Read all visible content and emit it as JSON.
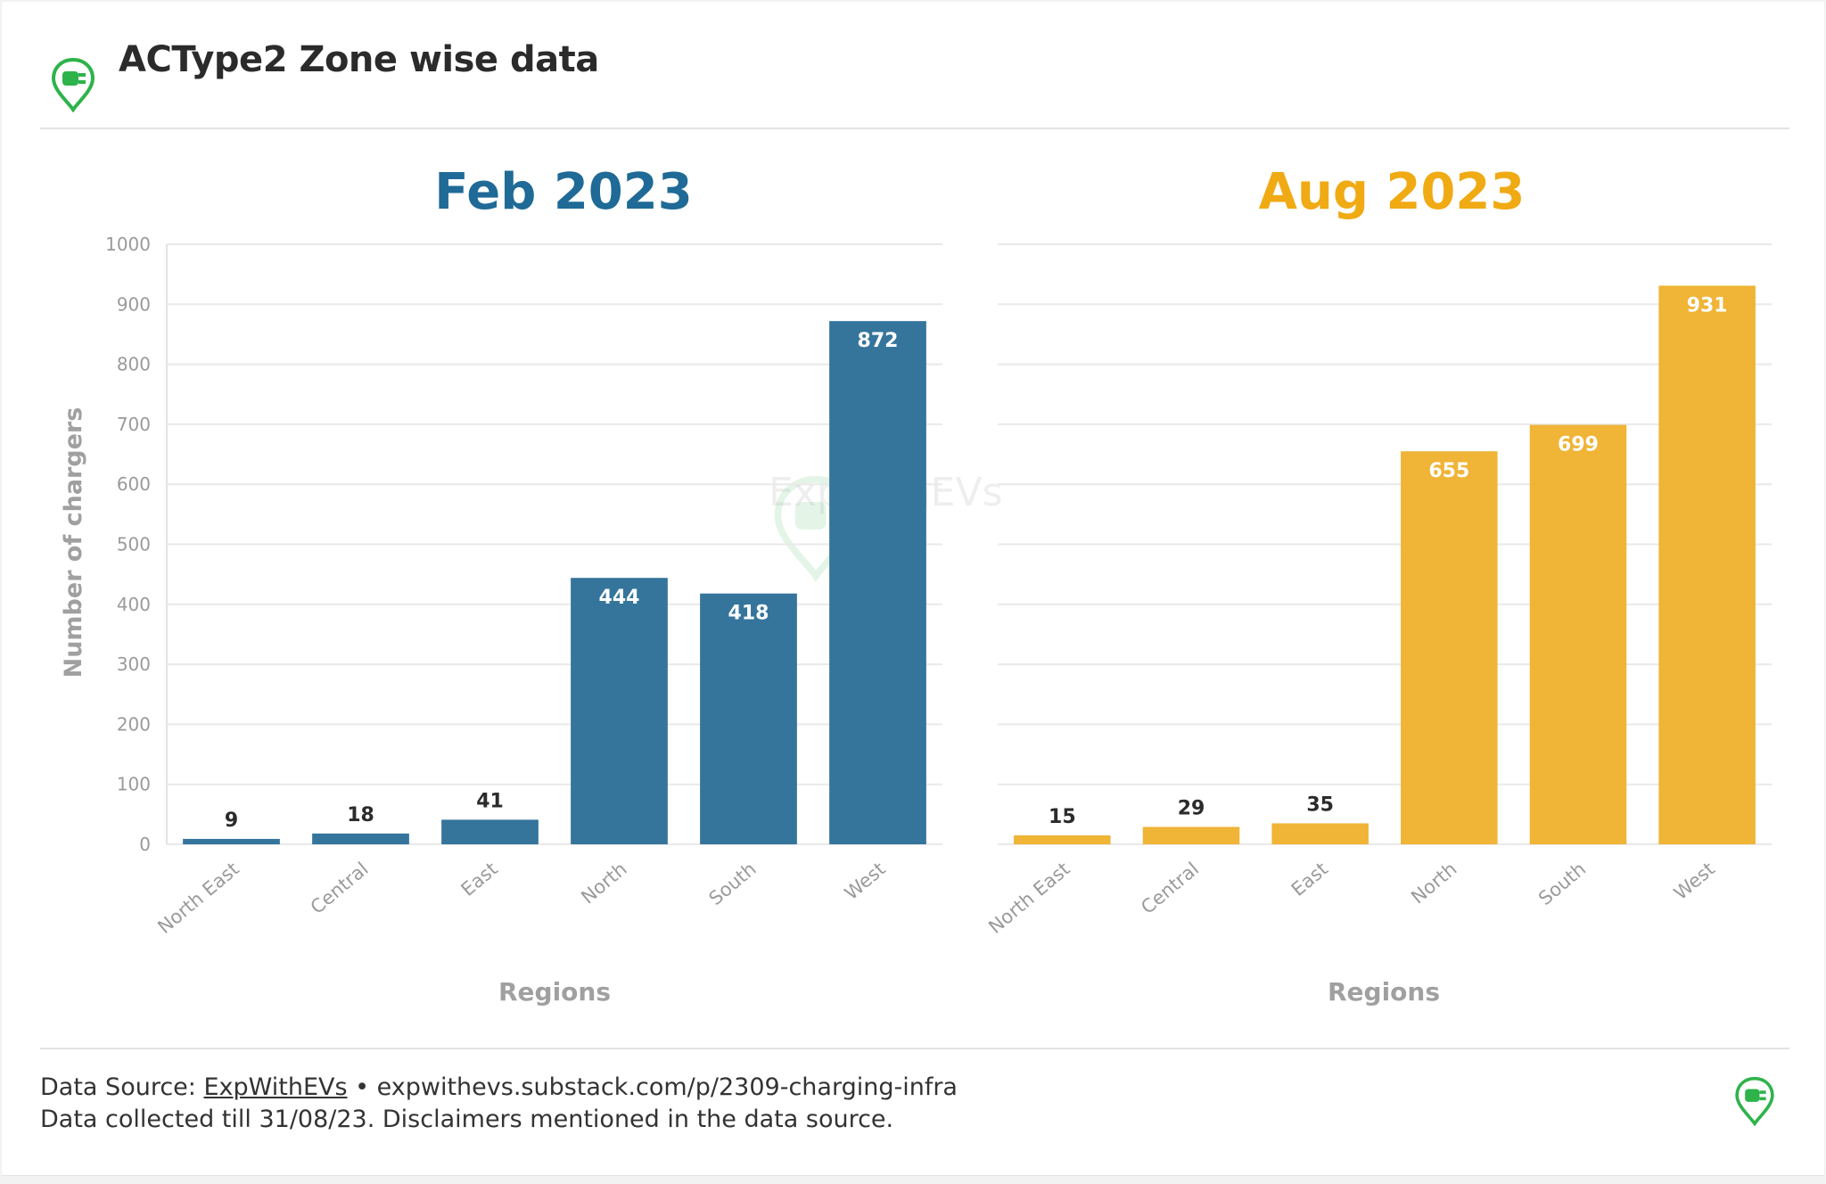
{
  "header": {
    "title": "ACType2 Zone wise data",
    "icon": "ev-plug-location-icon"
  },
  "watermark": {
    "text": "ExpWithEVs"
  },
  "footer": {
    "source_prefix": "Data Source: ",
    "source_link": "ExpWithEVs",
    "source_suffix": " • expwithevs.substack.com/p/2309-charging-infra",
    "note": "Data collected till 31/08/23. Disclaimers mentioned in the data source.",
    "icon": "ev-plug-location-icon"
  },
  "colors": {
    "feb": "#2e7199",
    "aug": "#f0b230",
    "feb_title": "#1f6a96",
    "aug_title": "#f0aa13",
    "brand_green": "#2db34a"
  },
  "chart_data": [
    {
      "type": "bar",
      "title": "Feb 2023",
      "categories": [
        "North East",
        "Central",
        "East",
        "North",
        "South",
        "West"
      ],
      "values": [
        9,
        18,
        41,
        444,
        418,
        872
      ],
      "xlabel": "Regions",
      "ylabel": "Number of chargers",
      "ylim": [
        0,
        1000
      ],
      "yticks": [
        0,
        100,
        200,
        300,
        400,
        500,
        600,
        700,
        800,
        900,
        1000
      ],
      "grid": true
    },
    {
      "type": "bar",
      "title": "Aug 2023",
      "categories": [
        "North East",
        "Central",
        "East",
        "North",
        "South",
        "West"
      ],
      "values": [
        15,
        29,
        35,
        655,
        699,
        931
      ],
      "xlabel": "Regions",
      "ylabel": "",
      "ylim": [
        0,
        1000
      ],
      "grid": true
    }
  ]
}
